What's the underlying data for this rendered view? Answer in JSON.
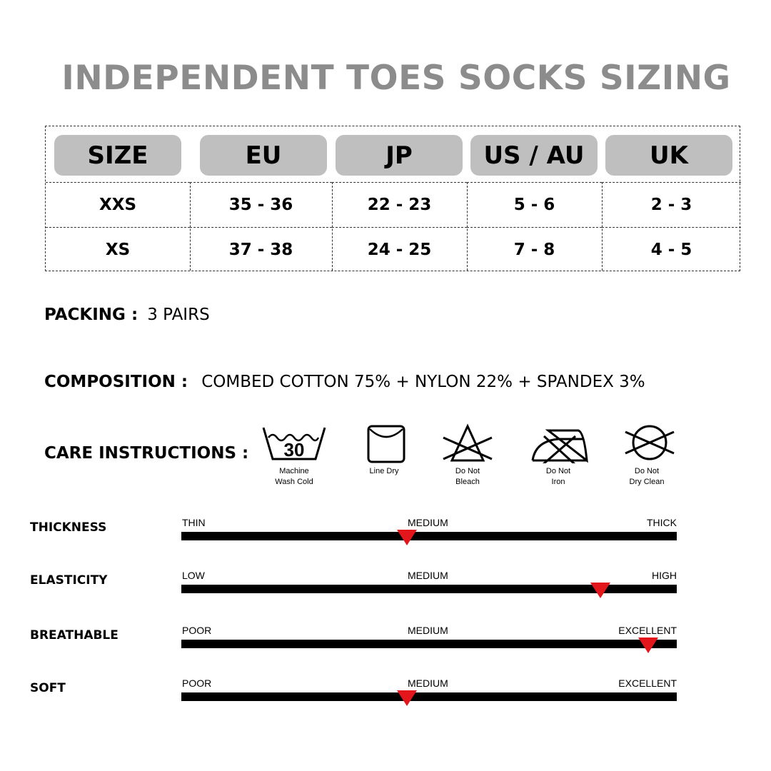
{
  "title": "INDEPENDENT TOES SOCKS SIZING",
  "table": {
    "headers": [
      "SIZE",
      "EU",
      "JP",
      "US / AU",
      "UK"
    ],
    "rows": [
      [
        "XXS",
        "35 - 36",
        "22 - 23",
        "5 - 6",
        "2 - 3"
      ],
      [
        "XS",
        "37 - 38",
        "24 - 25",
        "7 - 8",
        "4 - 5"
      ]
    ]
  },
  "packing": {
    "label": "PACKING :",
    "value": "3 PAIRS"
  },
  "composition": {
    "label": "COMPOSITION :",
    "value": "COMBED COTTON 75% + NYLON 22% + SPANDEX 3%"
  },
  "care": {
    "label": "CARE INSTRUCTIONS :",
    "items": [
      {
        "icon": "machine-wash-30-icon",
        "number": "30",
        "line1": "Machine",
        "line2": "Wash Cold"
      },
      {
        "icon": "line-dry-icon",
        "line1": "Line Dry",
        "line2": ""
      },
      {
        "icon": "do-not-bleach-icon",
        "line1": "Do Not",
        "line2": "Bleach"
      },
      {
        "icon": "do-not-iron-icon",
        "line1": "Do Not",
        "line2": "Iron"
      },
      {
        "icon": "do-not-dry-clean-icon",
        "line1": "Do Not",
        "line2": "Dry Clean"
      }
    ]
  },
  "marker_color": "#e3161b",
  "ratings": [
    {
      "label": "THICKNESS",
      "left": "THIN",
      "mid": "MEDIUM",
      "right": "THICK",
      "level": 0.455
    },
    {
      "label": "ELASTICITY",
      "left": "LOW",
      "mid": "MEDIUM",
      "right": "HIGH",
      "level": 0.846
    },
    {
      "label": "BREATHABLE",
      "left": "POOR",
      "mid": "MEDIUM",
      "right": "EXCELLENT",
      "level": 0.942
    },
    {
      "label": "SOFT",
      "left": "POOR",
      "mid": "MEDIUM",
      "right": "EXCELLENT",
      "level": 0.455
    }
  ]
}
